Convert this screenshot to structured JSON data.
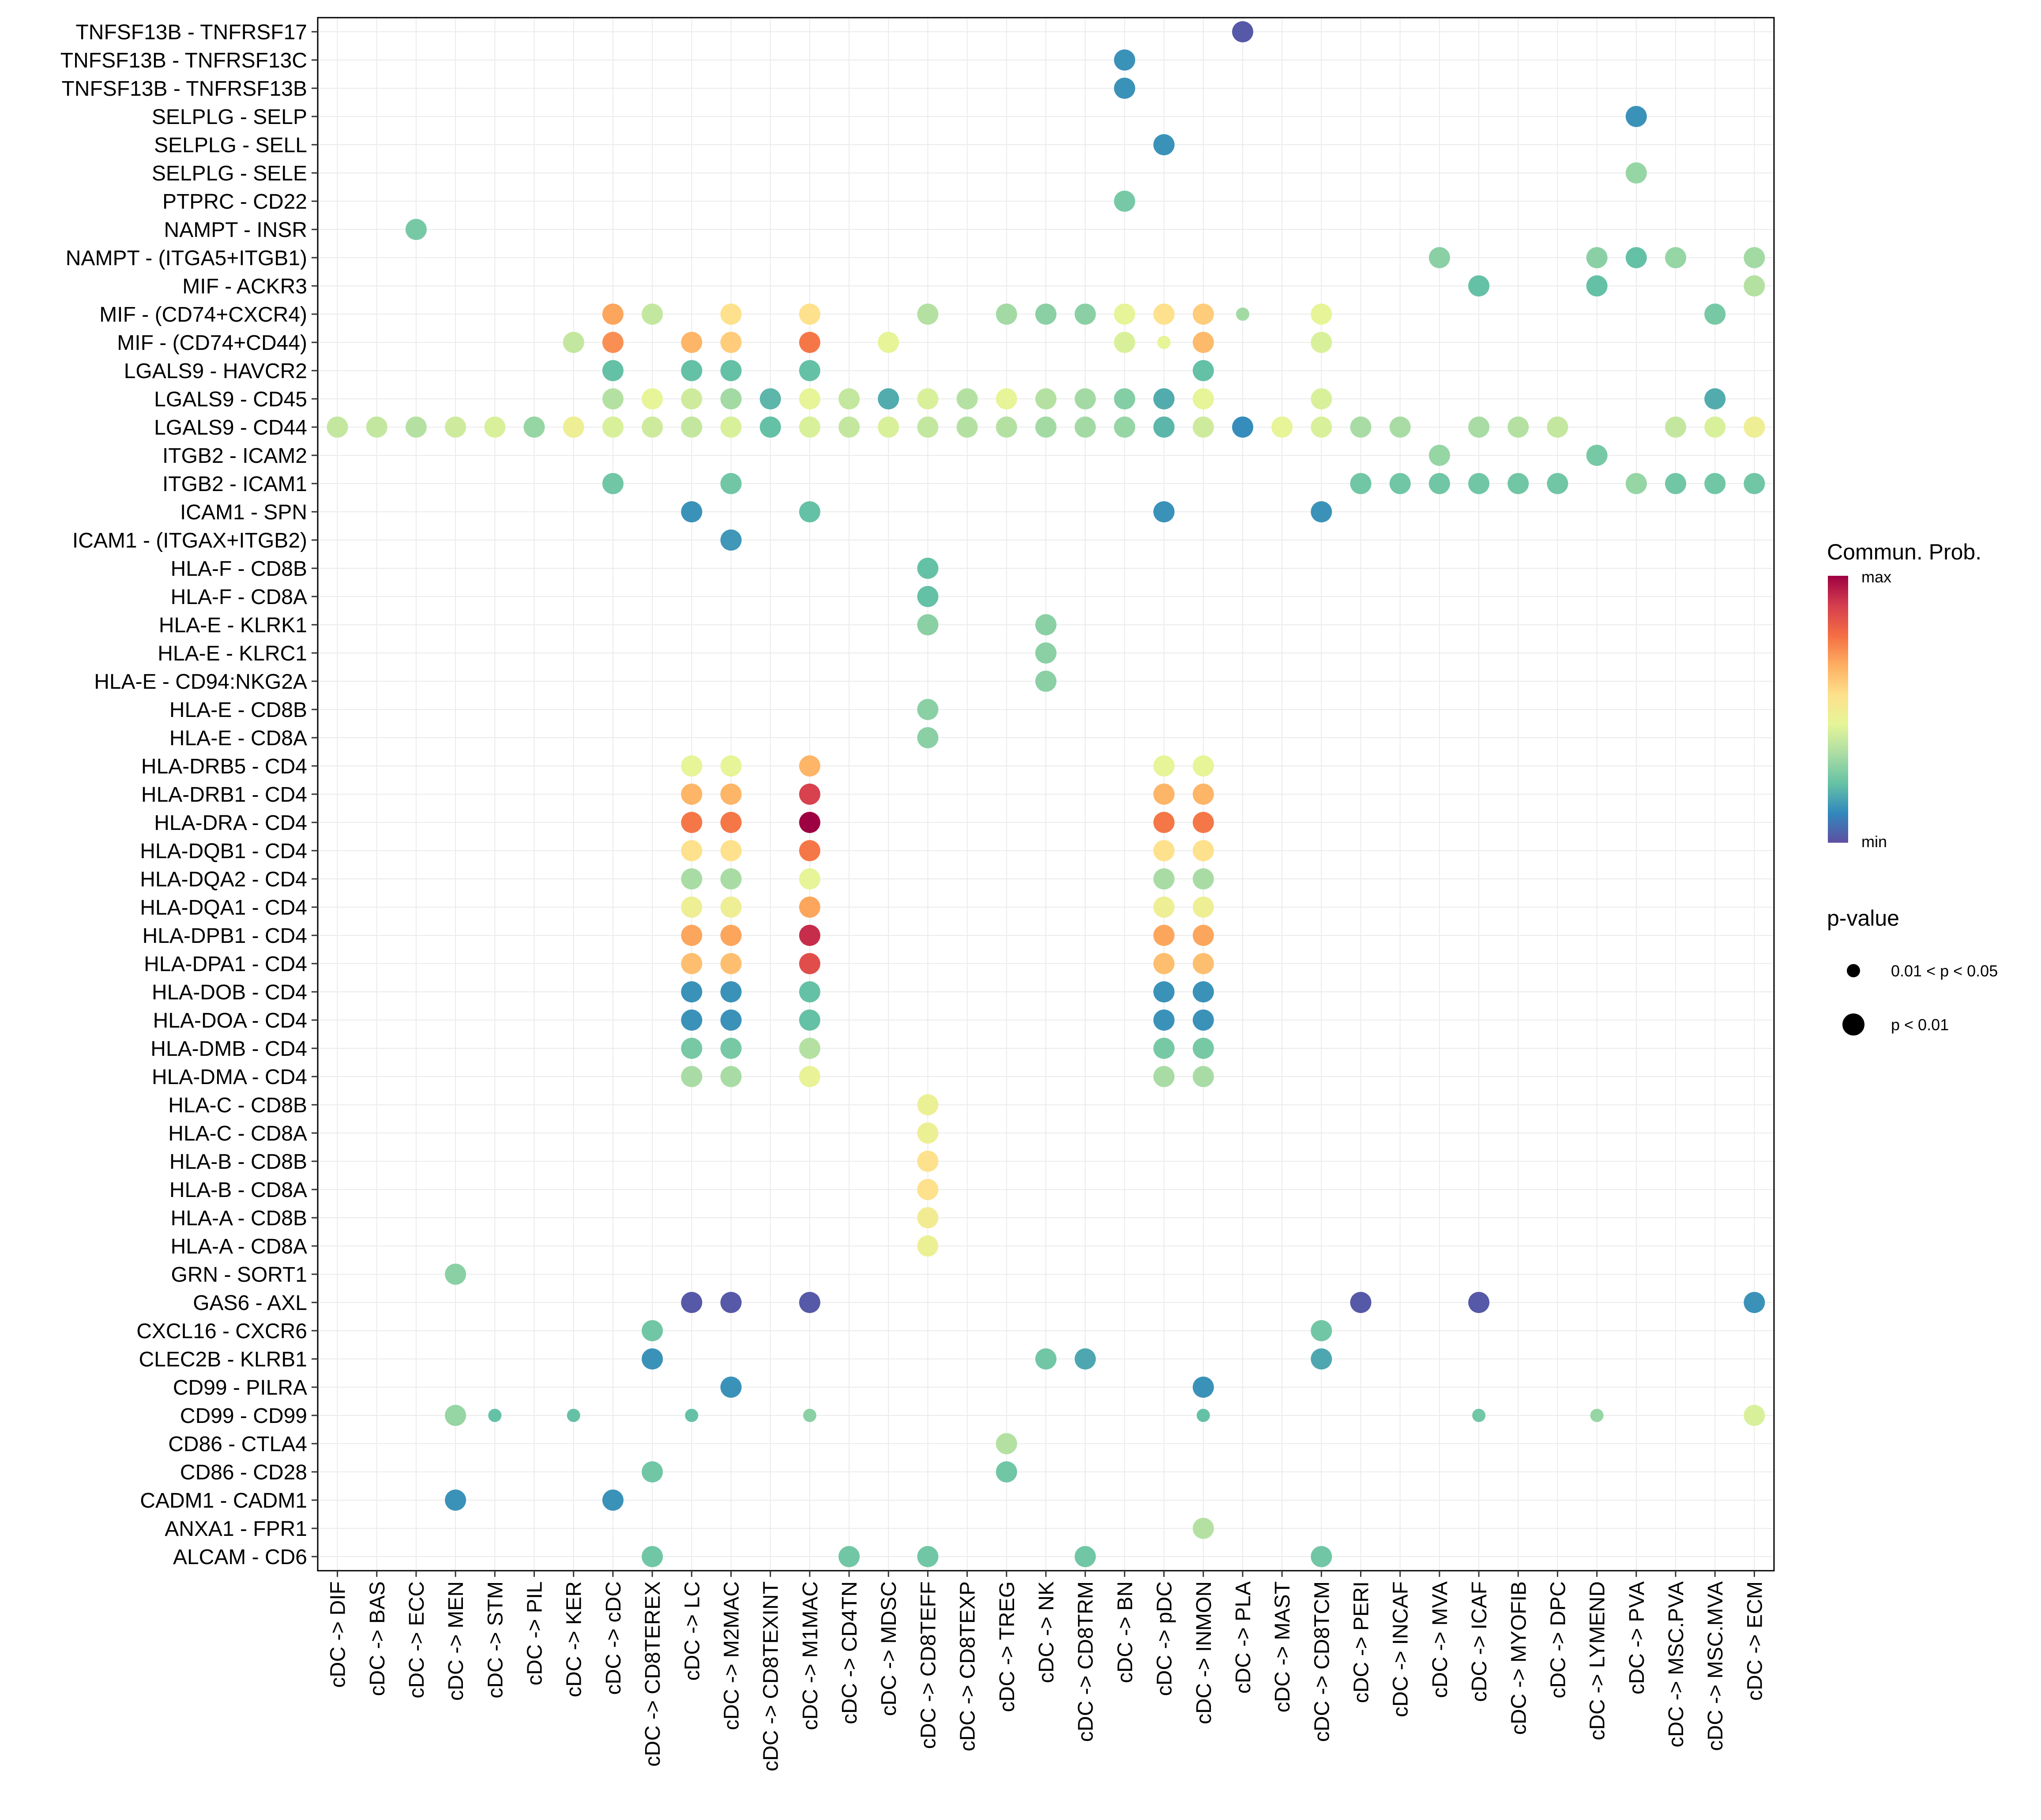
{
  "chart_data": {
    "type": "bubble",
    "legend": {
      "color_title": "Commun. Prob.",
      "color_max_label": "max",
      "color_min_label": "min",
      "color_scale": [
        "#5e4fa2",
        "#3288bd",
        "#66c2a5",
        "#abdda4",
        "#e6f598",
        "#fee08b",
        "#fdae61",
        "#f46d43",
        "#d53e4f",
        "#9e0142"
      ],
      "size_title": "p-value",
      "size_items": [
        {
          "label": "0.01 < p < 0.05",
          "level": "small"
        },
        {
          "label": "p < 0.01",
          "level": "large"
        }
      ],
      "position": "right"
    },
    "x_categories": [
      "cDC -> DIF",
      "cDC -> BAS",
      "cDC -> ECC",
      "cDC -> MEN",
      "cDC -> STM",
      "cDC -> PIL",
      "cDC -> KER",
      "cDC -> cDC",
      "cDC -> CD8TEREX",
      "cDC -> LC",
      "cDC -> M2MAC",
      "cDC -> CD8TEXINT",
      "cDC -> M1MAC",
      "cDC -> CD4TN",
      "cDC -> MDSC",
      "cDC -> CD8TEFF",
      "cDC -> CD8TEXP",
      "cDC -> TREG",
      "cDC -> NK",
      "cDC -> CD8TRM",
      "cDC -> BN",
      "cDC -> pDC",
      "cDC -> INMON",
      "cDC -> PLA",
      "cDC -> MAST",
      "cDC -> CD8TCM",
      "cDC -> PERI",
      "cDC -> INCAF",
      "cDC -> MVA",
      "cDC -> ICAF",
      "cDC -> MYOFIB",
      "cDC -> DPC",
      "cDC -> LYMEND",
      "cDC -> PVA",
      "cDC -> MSC.PVA",
      "cDC -> MSC.MVA",
      "cDC -> ECM"
    ],
    "y_categories": [
      "TNFSF13B - TNFRSF17",
      "TNFSF13B - TNFRSF13C",
      "TNFSF13B - TNFRSF13B",
      "SELPLG - SELP",
      "SELPLG - SELL",
      "SELPLG - SELE",
      "PTPRC - CD22",
      "NAMPT - INSR",
      "NAMPT - (ITGA5+ITGB1)",
      "MIF - ACKR3",
      "MIF - (CD74+CXCR4)",
      "MIF - (CD74+CD44)",
      "LGALS9 - HAVCR2",
      "LGALS9 - CD45",
      "LGALS9 - CD44",
      "ITGB2 - ICAM2",
      "ITGB2 - ICAM1",
      "ICAM1 - SPN",
      "ICAM1 - (ITGAX+ITGB2)",
      "HLA-F - CD8B",
      "HLA-F - CD8A",
      "HLA-E - KLRK1",
      "HLA-E - KLRC1",
      "HLA-E - CD94:NKG2A",
      "HLA-E - CD8B",
      "HLA-E - CD8A",
      "HLA-DRB5 - CD4",
      "HLA-DRB1 - CD4",
      "HLA-DRA - CD4",
      "HLA-DQB1 - CD4",
      "HLA-DQA2 - CD4",
      "HLA-DQA1 - CD4",
      "HLA-DPB1 - CD4",
      "HLA-DPA1 - CD4",
      "HLA-DOB - CD4",
      "HLA-DOA - CD4",
      "HLA-DMB - CD4",
      "HLA-DMA - CD4",
      "HLA-C - CD8B",
      "HLA-C - CD8A",
      "HLA-B - CD8B",
      "HLA-B - CD8A",
      "HLA-A - CD8B",
      "HLA-A - CD8A",
      "GRN - SORT1",
      "GAS6 - AXL",
      "CXCL16 - CXCR6",
      "CLEC2B - KLRB1",
      "CD99 - PILRA",
      "CD99 - CD99",
      "CD86 - CTLA4",
      "CD86 - CD28",
      "CADM1 - CADM1",
      "ANXA1 - FPR1",
      "ALCAM - CD6"
    ],
    "points_note": "each point: [x_index, y_index, relative communication probability 0(min)-1(max), p-value level 2 = p<0.01, 1 = 0.01<p<0.05]",
    "points": [
      [
        23,
        0,
        0.02,
        2
      ],
      [
        20,
        1,
        0.13,
        2
      ],
      [
        20,
        2,
        0.13,
        2
      ],
      [
        33,
        3,
        0.13,
        2
      ],
      [
        21,
        4,
        0.13,
        2
      ],
      [
        33,
        5,
        0.3,
        2
      ],
      [
        20,
        6,
        0.25,
        2
      ],
      [
        2,
        7,
        0.25,
        2
      ],
      [
        28,
        8,
        0.28,
        2
      ],
      [
        32,
        8,
        0.28,
        2
      ],
      [
        33,
        8,
        0.22,
        2
      ],
      [
        34,
        8,
        0.3,
        2
      ],
      [
        36,
        8,
        0.32,
        2
      ],
      [
        29,
        9,
        0.22,
        2
      ],
      [
        32,
        9,
        0.22,
        2
      ],
      [
        36,
        9,
        0.35,
        2
      ],
      [
        7,
        10,
        0.68,
        2
      ],
      [
        8,
        10,
        0.38,
        2
      ],
      [
        10,
        10,
        0.55,
        2
      ],
      [
        12,
        10,
        0.55,
        2
      ],
      [
        15,
        10,
        0.35,
        2
      ],
      [
        17,
        10,
        0.32,
        2
      ],
      [
        18,
        10,
        0.28,
        2
      ],
      [
        19,
        10,
        0.28,
        2
      ],
      [
        20,
        10,
        0.45,
        2
      ],
      [
        21,
        10,
        0.55,
        2
      ],
      [
        22,
        10,
        0.6,
        2
      ],
      [
        23,
        10,
        0.32,
        1
      ],
      [
        25,
        10,
        0.45,
        2
      ],
      [
        35,
        10,
        0.25,
        2
      ],
      [
        6,
        11,
        0.38,
        2
      ],
      [
        7,
        11,
        0.72,
        2
      ],
      [
        9,
        11,
        0.65,
        2
      ],
      [
        10,
        11,
        0.6,
        2
      ],
      [
        12,
        11,
        0.76,
        2
      ],
      [
        14,
        11,
        0.45,
        2
      ],
      [
        20,
        11,
        0.42,
        2
      ],
      [
        21,
        11,
        0.45,
        1
      ],
      [
        22,
        11,
        0.64,
        2
      ],
      [
        25,
        11,
        0.42,
        2
      ],
      [
        7,
        12,
        0.22,
        2
      ],
      [
        9,
        12,
        0.22,
        2
      ],
      [
        10,
        12,
        0.22,
        2
      ],
      [
        12,
        12,
        0.22,
        2
      ],
      [
        22,
        12,
        0.22,
        2
      ],
      [
        7,
        13,
        0.35,
        2
      ],
      [
        8,
        13,
        0.45,
        2
      ],
      [
        9,
        13,
        0.4,
        2
      ],
      [
        10,
        13,
        0.32,
        2
      ],
      [
        11,
        13,
        0.2,
        2
      ],
      [
        12,
        13,
        0.45,
        2
      ],
      [
        13,
        13,
        0.38,
        2
      ],
      [
        14,
        13,
        0.18,
        2
      ],
      [
        15,
        13,
        0.42,
        2
      ],
      [
        16,
        13,
        0.35,
        2
      ],
      [
        17,
        13,
        0.45,
        2
      ],
      [
        18,
        13,
        0.35,
        2
      ],
      [
        19,
        13,
        0.32,
        2
      ],
      [
        20,
        13,
        0.27,
        2
      ],
      [
        21,
        13,
        0.18,
        2
      ],
      [
        22,
        13,
        0.45,
        2
      ],
      [
        25,
        13,
        0.42,
        2
      ],
      [
        35,
        13,
        0.18,
        2
      ],
      [
        0,
        14,
        0.38,
        2
      ],
      [
        1,
        14,
        0.38,
        2
      ],
      [
        2,
        14,
        0.35,
        2
      ],
      [
        3,
        14,
        0.4,
        2
      ],
      [
        4,
        14,
        0.42,
        2
      ],
      [
        5,
        14,
        0.3,
        2
      ],
      [
        6,
        14,
        0.48,
        2
      ],
      [
        7,
        14,
        0.42,
        2
      ],
      [
        8,
        14,
        0.4,
        2
      ],
      [
        9,
        14,
        0.38,
        2
      ],
      [
        10,
        14,
        0.42,
        2
      ],
      [
        11,
        14,
        0.22,
        2
      ],
      [
        12,
        14,
        0.42,
        2
      ],
      [
        13,
        14,
        0.38,
        2
      ],
      [
        14,
        14,
        0.42,
        2
      ],
      [
        15,
        14,
        0.38,
        2
      ],
      [
        16,
        14,
        0.35,
        2
      ],
      [
        17,
        14,
        0.35,
        2
      ],
      [
        18,
        14,
        0.32,
        2
      ],
      [
        19,
        14,
        0.32,
        2
      ],
      [
        20,
        14,
        0.3,
        2
      ],
      [
        21,
        14,
        0.2,
        2
      ],
      [
        22,
        14,
        0.4,
        2
      ],
      [
        23,
        14,
        0.12,
        2
      ],
      [
        24,
        14,
        0.45,
        2
      ],
      [
        25,
        14,
        0.42,
        2
      ],
      [
        26,
        14,
        0.33,
        2
      ],
      [
        27,
        14,
        0.33,
        2
      ],
      [
        29,
        14,
        0.33,
        2
      ],
      [
        30,
        14,
        0.35,
        2
      ],
      [
        31,
        14,
        0.38,
        2
      ],
      [
        34,
        14,
        0.38,
        2
      ],
      [
        35,
        14,
        0.42,
        2
      ],
      [
        36,
        14,
        0.48,
        2
      ],
      [
        28,
        15,
        0.3,
        2
      ],
      [
        32,
        15,
        0.25,
        2
      ],
      [
        7,
        16,
        0.24,
        2
      ],
      [
        10,
        16,
        0.24,
        2
      ],
      [
        26,
        16,
        0.24,
        2
      ],
      [
        27,
        16,
        0.24,
        2
      ],
      [
        28,
        16,
        0.24,
        2
      ],
      [
        29,
        16,
        0.24,
        2
      ],
      [
        30,
        16,
        0.24,
        2
      ],
      [
        31,
        16,
        0.24,
        2
      ],
      [
        33,
        16,
        0.3,
        2
      ],
      [
        34,
        16,
        0.24,
        2
      ],
      [
        35,
        16,
        0.24,
        2
      ],
      [
        36,
        16,
        0.24,
        2
      ],
      [
        9,
        17,
        0.13,
        2
      ],
      [
        12,
        17,
        0.22,
        2
      ],
      [
        21,
        17,
        0.13,
        2
      ],
      [
        25,
        17,
        0.13,
        2
      ],
      [
        10,
        18,
        0.14,
        2
      ],
      [
        15,
        19,
        0.22,
        2
      ],
      [
        15,
        20,
        0.22,
        2
      ],
      [
        15,
        21,
        0.28,
        2
      ],
      [
        18,
        21,
        0.28,
        2
      ],
      [
        18,
        22,
        0.28,
        2
      ],
      [
        18,
        23,
        0.28,
        2
      ],
      [
        15,
        24,
        0.28,
        2
      ],
      [
        15,
        25,
        0.28,
        2
      ],
      [
        9,
        26,
        0.45,
        2
      ],
      [
        10,
        26,
        0.45,
        2
      ],
      [
        12,
        26,
        0.65,
        2
      ],
      [
        21,
        26,
        0.45,
        2
      ],
      [
        22,
        26,
        0.45,
        2
      ],
      [
        9,
        27,
        0.65,
        2
      ],
      [
        10,
        27,
        0.65,
        2
      ],
      [
        12,
        27,
        0.88,
        2
      ],
      [
        21,
        27,
        0.65,
        2
      ],
      [
        22,
        27,
        0.65,
        2
      ],
      [
        9,
        28,
        0.76,
        2
      ],
      [
        10,
        28,
        0.76,
        2
      ],
      [
        12,
        28,
        1.0,
        2
      ],
      [
        21,
        28,
        0.76,
        2
      ],
      [
        22,
        28,
        0.76,
        2
      ],
      [
        9,
        29,
        0.55,
        2
      ],
      [
        10,
        29,
        0.55,
        2
      ],
      [
        12,
        29,
        0.76,
        2
      ],
      [
        21,
        29,
        0.55,
        2
      ],
      [
        22,
        29,
        0.55,
        2
      ],
      [
        9,
        30,
        0.33,
        2
      ],
      [
        10,
        30,
        0.33,
        2
      ],
      [
        12,
        30,
        0.45,
        2
      ],
      [
        21,
        30,
        0.33,
        2
      ],
      [
        22,
        30,
        0.33,
        2
      ],
      [
        9,
        31,
        0.48,
        2
      ],
      [
        10,
        31,
        0.48,
        2
      ],
      [
        12,
        31,
        0.68,
        2
      ],
      [
        21,
        31,
        0.48,
        2
      ],
      [
        22,
        31,
        0.48,
        2
      ],
      [
        9,
        32,
        0.68,
        2
      ],
      [
        10,
        32,
        0.68,
        2
      ],
      [
        12,
        32,
        0.92,
        2
      ],
      [
        21,
        32,
        0.68,
        2
      ],
      [
        22,
        32,
        0.68,
        2
      ],
      [
        9,
        33,
        0.63,
        2
      ],
      [
        10,
        33,
        0.63,
        2
      ],
      [
        12,
        33,
        0.85,
        2
      ],
      [
        21,
        33,
        0.63,
        2
      ],
      [
        22,
        33,
        0.63,
        2
      ],
      [
        9,
        34,
        0.13,
        2
      ],
      [
        10,
        34,
        0.13,
        2
      ],
      [
        12,
        34,
        0.22,
        2
      ],
      [
        21,
        34,
        0.13,
        2
      ],
      [
        22,
        34,
        0.13,
        2
      ],
      [
        9,
        35,
        0.13,
        2
      ],
      [
        10,
        35,
        0.13,
        2
      ],
      [
        12,
        35,
        0.22,
        2
      ],
      [
        21,
        35,
        0.13,
        2
      ],
      [
        22,
        35,
        0.13,
        2
      ],
      [
        9,
        36,
        0.25,
        2
      ],
      [
        10,
        36,
        0.25,
        2
      ],
      [
        12,
        36,
        0.35,
        2
      ],
      [
        21,
        36,
        0.25,
        2
      ],
      [
        22,
        36,
        0.25,
        2
      ],
      [
        9,
        37,
        0.33,
        2
      ],
      [
        10,
        37,
        0.33,
        2
      ],
      [
        12,
        37,
        0.46,
        2
      ],
      [
        21,
        37,
        0.33,
        2
      ],
      [
        22,
        37,
        0.33,
        2
      ],
      [
        15,
        38,
        0.47,
        2
      ],
      [
        15,
        39,
        0.47,
        2
      ],
      [
        15,
        40,
        0.55,
        2
      ],
      [
        15,
        41,
        0.55,
        2
      ],
      [
        15,
        42,
        0.5,
        2
      ],
      [
        15,
        43,
        0.47,
        2
      ],
      [
        3,
        44,
        0.28,
        2
      ],
      [
        9,
        45,
        0.02,
        2
      ],
      [
        10,
        45,
        0.02,
        2
      ],
      [
        12,
        45,
        0.02,
        2
      ],
      [
        26,
        45,
        0.02,
        2
      ],
      [
        29,
        45,
        0.02,
        2
      ],
      [
        36,
        45,
        0.13,
        2
      ],
      [
        8,
        46,
        0.24,
        2
      ],
      [
        25,
        46,
        0.24,
        2
      ],
      [
        8,
        47,
        0.13,
        2
      ],
      [
        18,
        47,
        0.24,
        2
      ],
      [
        19,
        47,
        0.17,
        2
      ],
      [
        25,
        47,
        0.17,
        2
      ],
      [
        10,
        48,
        0.13,
        2
      ],
      [
        22,
        48,
        0.13,
        2
      ],
      [
        3,
        49,
        0.3,
        2
      ],
      [
        4,
        49,
        0.22,
        1
      ],
      [
        6,
        49,
        0.22,
        1
      ],
      [
        9,
        49,
        0.22,
        1
      ],
      [
        12,
        49,
        0.28,
        1
      ],
      [
        22,
        49,
        0.22,
        1
      ],
      [
        29,
        49,
        0.24,
        1
      ],
      [
        32,
        49,
        0.3,
        1
      ],
      [
        36,
        49,
        0.42,
        2
      ],
      [
        17,
        50,
        0.35,
        2
      ],
      [
        8,
        51,
        0.24,
        2
      ],
      [
        17,
        51,
        0.24,
        2
      ],
      [
        3,
        52,
        0.13,
        2
      ],
      [
        7,
        52,
        0.13,
        2
      ],
      [
        22,
        53,
        0.35,
        2
      ],
      [
        8,
        54,
        0.24,
        2
      ],
      [
        13,
        54,
        0.24,
        2
      ],
      [
        15,
        54,
        0.24,
        2
      ],
      [
        19,
        54,
        0.24,
        2
      ],
      [
        25,
        54,
        0.24,
        2
      ]
    ]
  }
}
